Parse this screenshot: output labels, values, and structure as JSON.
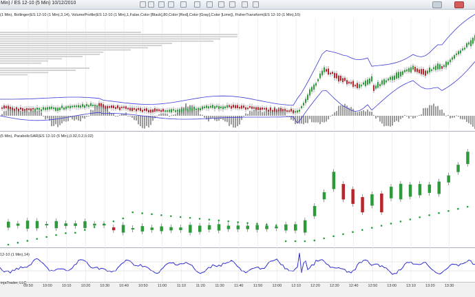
{
  "window": {
    "title": "Min) / ES 12-10 (5 Min)  10/12/2010",
    "toolbar_icons": [
      "toolbar-icon-1",
      "toolbar-icon-2",
      "toolbar-icon-3",
      "toolbar-icon-4",
      "toolbar-icon-5",
      "toolbar-icon-6",
      "toolbar-icon-7",
      "toolbar-icon-8",
      "toolbar-icon-9",
      "toolbar-icon-10",
      "toolbar-icon-11"
    ],
    "minimize_icon": "minimize-icon",
    "close_icon": "close-icon"
  },
  "panels": {
    "price_indicators": "(1 Min), Bollinger(ES 12-10 (1 Min),3,14), VolumeProfile(ES 12-10 (1 Min),1,False,Color [Black],80,Color [Red],Color [Gray],Color [Lime]), FisherTransform(ES 12-10 (1 Min),10)",
    "sar_indicators": "(5 Min), ParabolicSAR(ES 12-10 (5 Min),0.02,0.2,0.02)",
    "lower_indicators": "12-10 (1 Min),14)"
  },
  "time_axis": {
    "labels": [
      "09:50",
      "10:00",
      "10:10",
      "10:20",
      "10:30",
      "10:40",
      "10:50",
      "11:00",
      "11:10",
      "11:20",
      "11:30",
      "11:40",
      "11:50",
      "12:00",
      "12:10",
      "12:20",
      "12:30",
      "12:40",
      "12:50",
      "13:00",
      "13:10",
      "13:20",
      "13:30"
    ]
  },
  "status": {
    "text": "injaTrader, LLC"
  },
  "colors": {
    "bull": "#2e9b3a",
    "bear": "#b8262b",
    "band": "#3a3ad6",
    "hist": "#9a9a9a",
    "sar": "#22a03a",
    "osc": "#2a2acf",
    "grid": "#e6e6e6"
  }
}
